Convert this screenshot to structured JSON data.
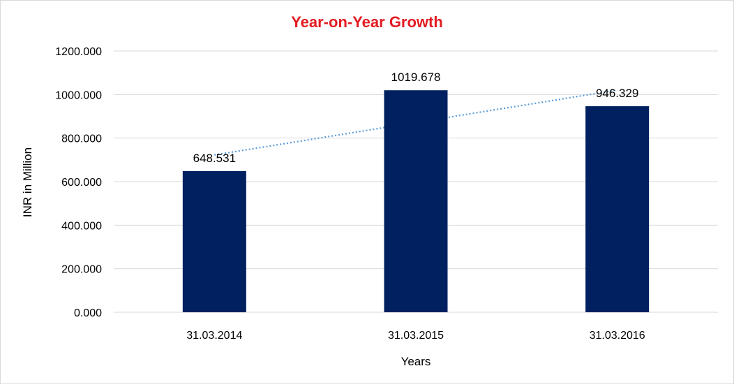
{
  "chart_data": {
    "type": "bar",
    "title": "Year-on-Year Growth",
    "xlabel": "Years",
    "ylabel": "INR in Million",
    "categories": [
      "31.03.2014",
      "31.03.2015",
      "31.03.2016"
    ],
    "values": [
      648.531,
      1019.678,
      946.329
    ],
    "data_labels": [
      "648.531",
      "1019.678",
      "946.329"
    ],
    "ylim": [
      0,
      1200
    ],
    "yticks": [
      0,
      200,
      400,
      600,
      800,
      1000,
      1200
    ],
    "ytick_labels": [
      "0.000",
      "200.000",
      "400.000",
      "600.000",
      "800.000",
      "1000.000",
      "1200.000"
    ],
    "trendline": {
      "type": "linear",
      "style": "dotted"
    },
    "grid": true,
    "legend": "none",
    "colors": {
      "bar": "#002060",
      "title": "#e31c23",
      "trendline": "#5b9bd5",
      "grid": "#d9d9d9"
    }
  }
}
